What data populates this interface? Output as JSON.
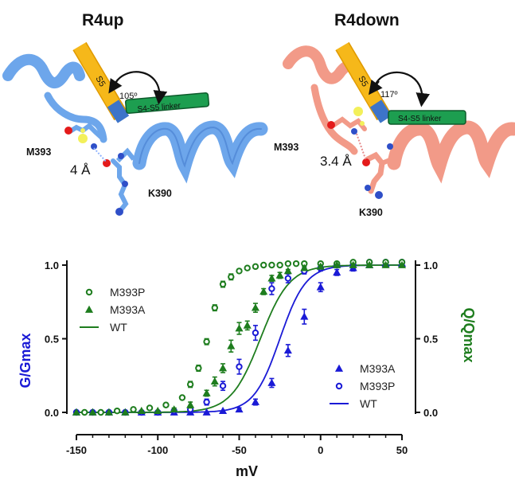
{
  "panels": {
    "left": {
      "title": "R4up",
      "residue_a": "M393",
      "residue_b": "K390",
      "distance": "4 Å",
      "angle": "105º",
      "helix_s5": "S5",
      "linker": "S4-S5 linker",
      "colors": {
        "helix": "#6da6eb",
        "helix_dark": "#3d74c9",
        "s5": "#f6b81a",
        "linker": "#1d9e50"
      }
    },
    "right": {
      "title": "R4down",
      "residue_a": "M393",
      "residue_b": "K390",
      "distance": "3.4 Å",
      "angle": "117º",
      "helix_s5": "S5",
      "linker": "S4-S5 linker",
      "colors": {
        "helix": "#f29a88",
        "helix_dark": "#d9695a",
        "s5": "#f6b81a",
        "linker": "#1d9e50"
      }
    }
  },
  "chart_data": {
    "type": "scatter",
    "xlabel": "mV",
    "ylabel_left": "G/Gmax",
    "ylabel_right": "Q/Qmax",
    "xlim": [
      -150,
      50
    ],
    "ylim": [
      0,
      1.05
    ],
    "xticks": [
      "-150",
      "-100",
      "-50",
      "0",
      "50"
    ],
    "yticks_left": [
      "0.0",
      "0.5",
      "1.0"
    ],
    "yticks_right": [
      "0.0",
      "0.5",
      "1.0"
    ],
    "colors": {
      "G": "#1a1ad6",
      "Q": "#1e7d1e"
    },
    "legend_q": [
      {
        "label": "M393P",
        "marker": "circle-open"
      },
      {
        "label": "M393A",
        "marker": "triangle"
      },
      {
        "label": "WT",
        "marker": "line"
      }
    ],
    "legend_g": [
      {
        "label": "M393A",
        "marker": "triangle"
      },
      {
        "label": "M393P",
        "marker": "circle-open"
      },
      {
        "label": "WT",
        "marker": "line"
      }
    ],
    "series": [
      {
        "name": "G M393A",
        "group": "G",
        "marker": "triangle",
        "x": [
          -150,
          -140,
          -130,
          -120,
          -110,
          -100,
          -90,
          -80,
          -70,
          -60,
          -50,
          -40,
          -30,
          -20,
          -10,
          0,
          10,
          20,
          30,
          40,
          50
        ],
        "y": [
          0.0,
          0.0,
          0.0,
          0.0,
          0.0,
          0.0,
          0.0,
          0.0,
          0.0,
          0.01,
          0.02,
          0.07,
          0.2,
          0.42,
          0.65,
          0.85,
          0.95,
          0.98,
          1.0,
          1.01,
          1.01
        ],
        "err": [
          0,
          0,
          0,
          0,
          0,
          0,
          0,
          0,
          0,
          0,
          0.01,
          0.02,
          0.03,
          0.04,
          0.05,
          0.03,
          0.02,
          0.02,
          0.01,
          0.01,
          0.01
        ]
      },
      {
        "name": "G M393P",
        "group": "G",
        "marker": "circle-open",
        "x": [
          -150,
          -140,
          -130,
          -120,
          -110,
          -100,
          -90,
          -80,
          -70,
          -60,
          -50,
          -40,
          -30,
          -20,
          -10,
          0,
          10,
          20,
          30,
          40,
          50
        ],
        "y": [
          0.0,
          0.0,
          0.0,
          0.0,
          0.0,
          0.0,
          0.01,
          0.02,
          0.07,
          0.18,
          0.31,
          0.54,
          0.84,
          0.91,
          0.96,
          0.98,
          1.0,
          1.0,
          1.02,
          1.02,
          1.02
        ],
        "err": [
          0,
          0,
          0,
          0,
          0,
          0,
          0,
          0.01,
          0.02,
          0.03,
          0.05,
          0.05,
          0.04,
          0.03,
          0.02,
          0.02,
          0.01,
          0.01,
          0.01,
          0.01,
          0.01
        ]
      },
      {
        "name": "Q M393P",
        "group": "Q",
        "marker": "circle-open",
        "x": [
          -145,
          -135,
          -125,
          -115,
          -105,
          -95,
          -85,
          -80,
          -75,
          -70,
          -65,
          -60,
          -55,
          -50,
          -45,
          -40,
          -35,
          -30,
          -25,
          -20,
          -15,
          -10,
          0,
          10,
          20,
          30,
          40,
          50
        ],
        "y": [
          0.0,
          0.0,
          0.01,
          0.02,
          0.03,
          0.05,
          0.1,
          0.19,
          0.3,
          0.48,
          0.71,
          0.87,
          0.92,
          0.96,
          0.98,
          0.99,
          1.0,
          1.0,
          1.0,
          1.01,
          1.01,
          1.01,
          1.01,
          1.01,
          1.02,
          1.02,
          1.02,
          1.02
        ],
        "err": [
          0,
          0,
          0,
          0,
          0,
          0.01,
          0.01,
          0.02,
          0.02,
          0.02,
          0.02,
          0.02,
          0.02,
          0.01,
          0.01,
          0.01,
          0,
          0,
          0,
          0,
          0,
          0,
          0,
          0,
          0,
          0,
          0,
          0
        ]
      },
      {
        "name": "Q M393A",
        "group": "Q",
        "marker": "triangle",
        "x": [
          -150,
          -140,
          -130,
          -120,
          -110,
          -100,
          -90,
          -80,
          -70,
          -65,
          -60,
          -55,
          -50,
          -45,
          -40,
          -35,
          -30,
          -25,
          -20,
          -10,
          0,
          10,
          20,
          30,
          40,
          50
        ],
        "y": [
          0.0,
          0.0,
          0.0,
          0.0,
          0.01,
          0.01,
          0.02,
          0.05,
          0.13,
          0.21,
          0.3,
          0.45,
          0.57,
          0.59,
          0.71,
          0.82,
          0.91,
          0.93,
          0.96,
          0.98,
          0.99,
          1.0,
          1.0,
          1.0,
          1.0,
          1.0
        ],
        "err": [
          0,
          0,
          0,
          0,
          0,
          0,
          0.01,
          0.02,
          0.02,
          0.03,
          0.03,
          0.04,
          0.04,
          0.03,
          0.03,
          0.02,
          0.02,
          0.02,
          0.01,
          0.01,
          0.01,
          0,
          0,
          0,
          0,
          0
        ]
      }
    ],
    "fits": [
      {
        "name": "WT G",
        "group": "G",
        "v_half": -25,
        "slope": 8
      },
      {
        "name": "WT Q",
        "group": "Q",
        "v_half": -37,
        "slope": 9
      }
    ]
  }
}
